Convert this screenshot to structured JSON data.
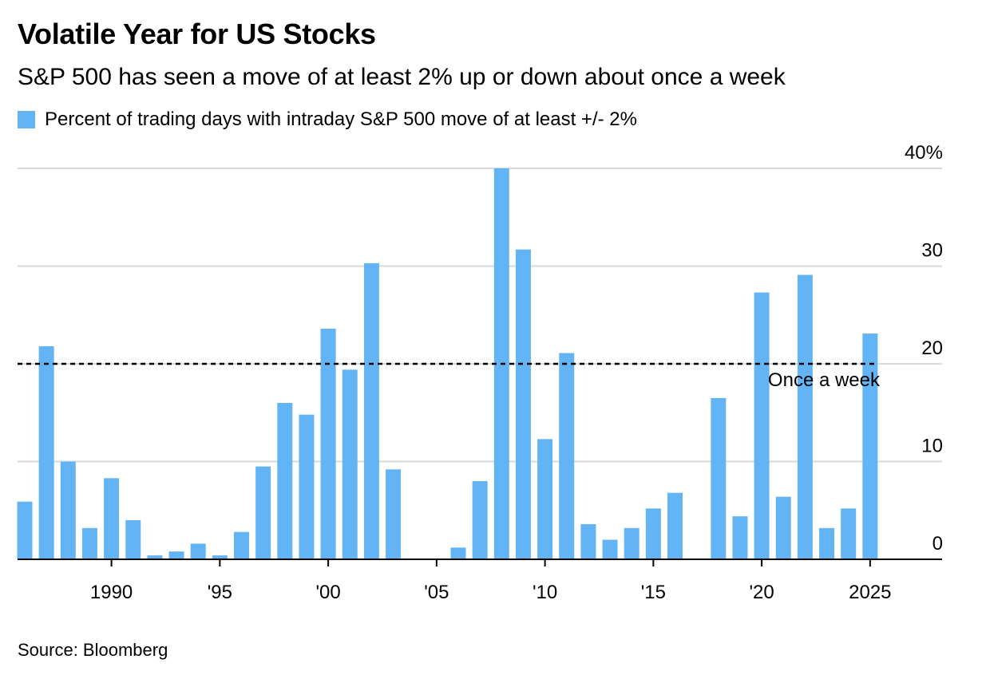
{
  "title": "Volatile Year for US Stocks",
  "subtitle": "S&P 500 has seen a move of at least 2% up or down about once a week",
  "source": "Source: Bloomberg",
  "colors": {
    "bar": "#63b4f4",
    "grid": "#d9d9d9",
    "axis": "#000000",
    "reference": "#000000"
  },
  "chart_data": {
    "type": "bar",
    "series": [
      {
        "name": "Percent of trading days with intraday S&P 500 move of at least +/- 2%",
        "color": "#63b4f4"
      }
    ],
    "x": [
      1986,
      1987,
      1988,
      1989,
      1990,
      1991,
      1992,
      1993,
      1994,
      1995,
      1996,
      1997,
      1998,
      1999,
      2000,
      2001,
      2002,
      2003,
      2004,
      2005,
      2006,
      2007,
      2008,
      2009,
      2010,
      2011,
      2012,
      2013,
      2014,
      2015,
      2016,
      2017,
      2018,
      2019,
      2020,
      2021,
      2022,
      2023,
      2024,
      2025
    ],
    "values": [
      5.9,
      21.8,
      10.0,
      3.2,
      8.3,
      4.0,
      0.4,
      0.8,
      1.6,
      0.4,
      2.8,
      9.5,
      16.0,
      14.8,
      23.6,
      19.4,
      30.3,
      9.2,
      0.0,
      0.0,
      1.2,
      8.0,
      40.0,
      31.7,
      12.3,
      21.1,
      3.6,
      2.0,
      3.2,
      5.2,
      6.8,
      0.0,
      16.5,
      4.4,
      27.3,
      6.4,
      29.1,
      3.2,
      5.2,
      23.1
    ],
    "x_ticks": [
      {
        "year": 1990,
        "label": "1990"
      },
      {
        "year": 1995,
        "label": "'95"
      },
      {
        "year": 2000,
        "label": "'00"
      },
      {
        "year": 2005,
        "label": "'05"
      },
      {
        "year": 2010,
        "label": "'10"
      },
      {
        "year": 2015,
        "label": "'15"
      },
      {
        "year": 2020,
        "label": "'20"
      },
      {
        "year": 2025,
        "label": "2025"
      }
    ],
    "y_ticks": [
      {
        "value": 0,
        "label": "0"
      },
      {
        "value": 10,
        "label": "10"
      },
      {
        "value": 20,
        "label": "20"
      },
      {
        "value": 30,
        "label": "30"
      },
      {
        "value": 40,
        "label": "40%"
      }
    ],
    "ylim": [
      0,
      40
    ],
    "grid": true,
    "legend_position": "top-left",
    "reference_line": {
      "value": 20,
      "label": "Once a week",
      "style": "dashed"
    }
  }
}
